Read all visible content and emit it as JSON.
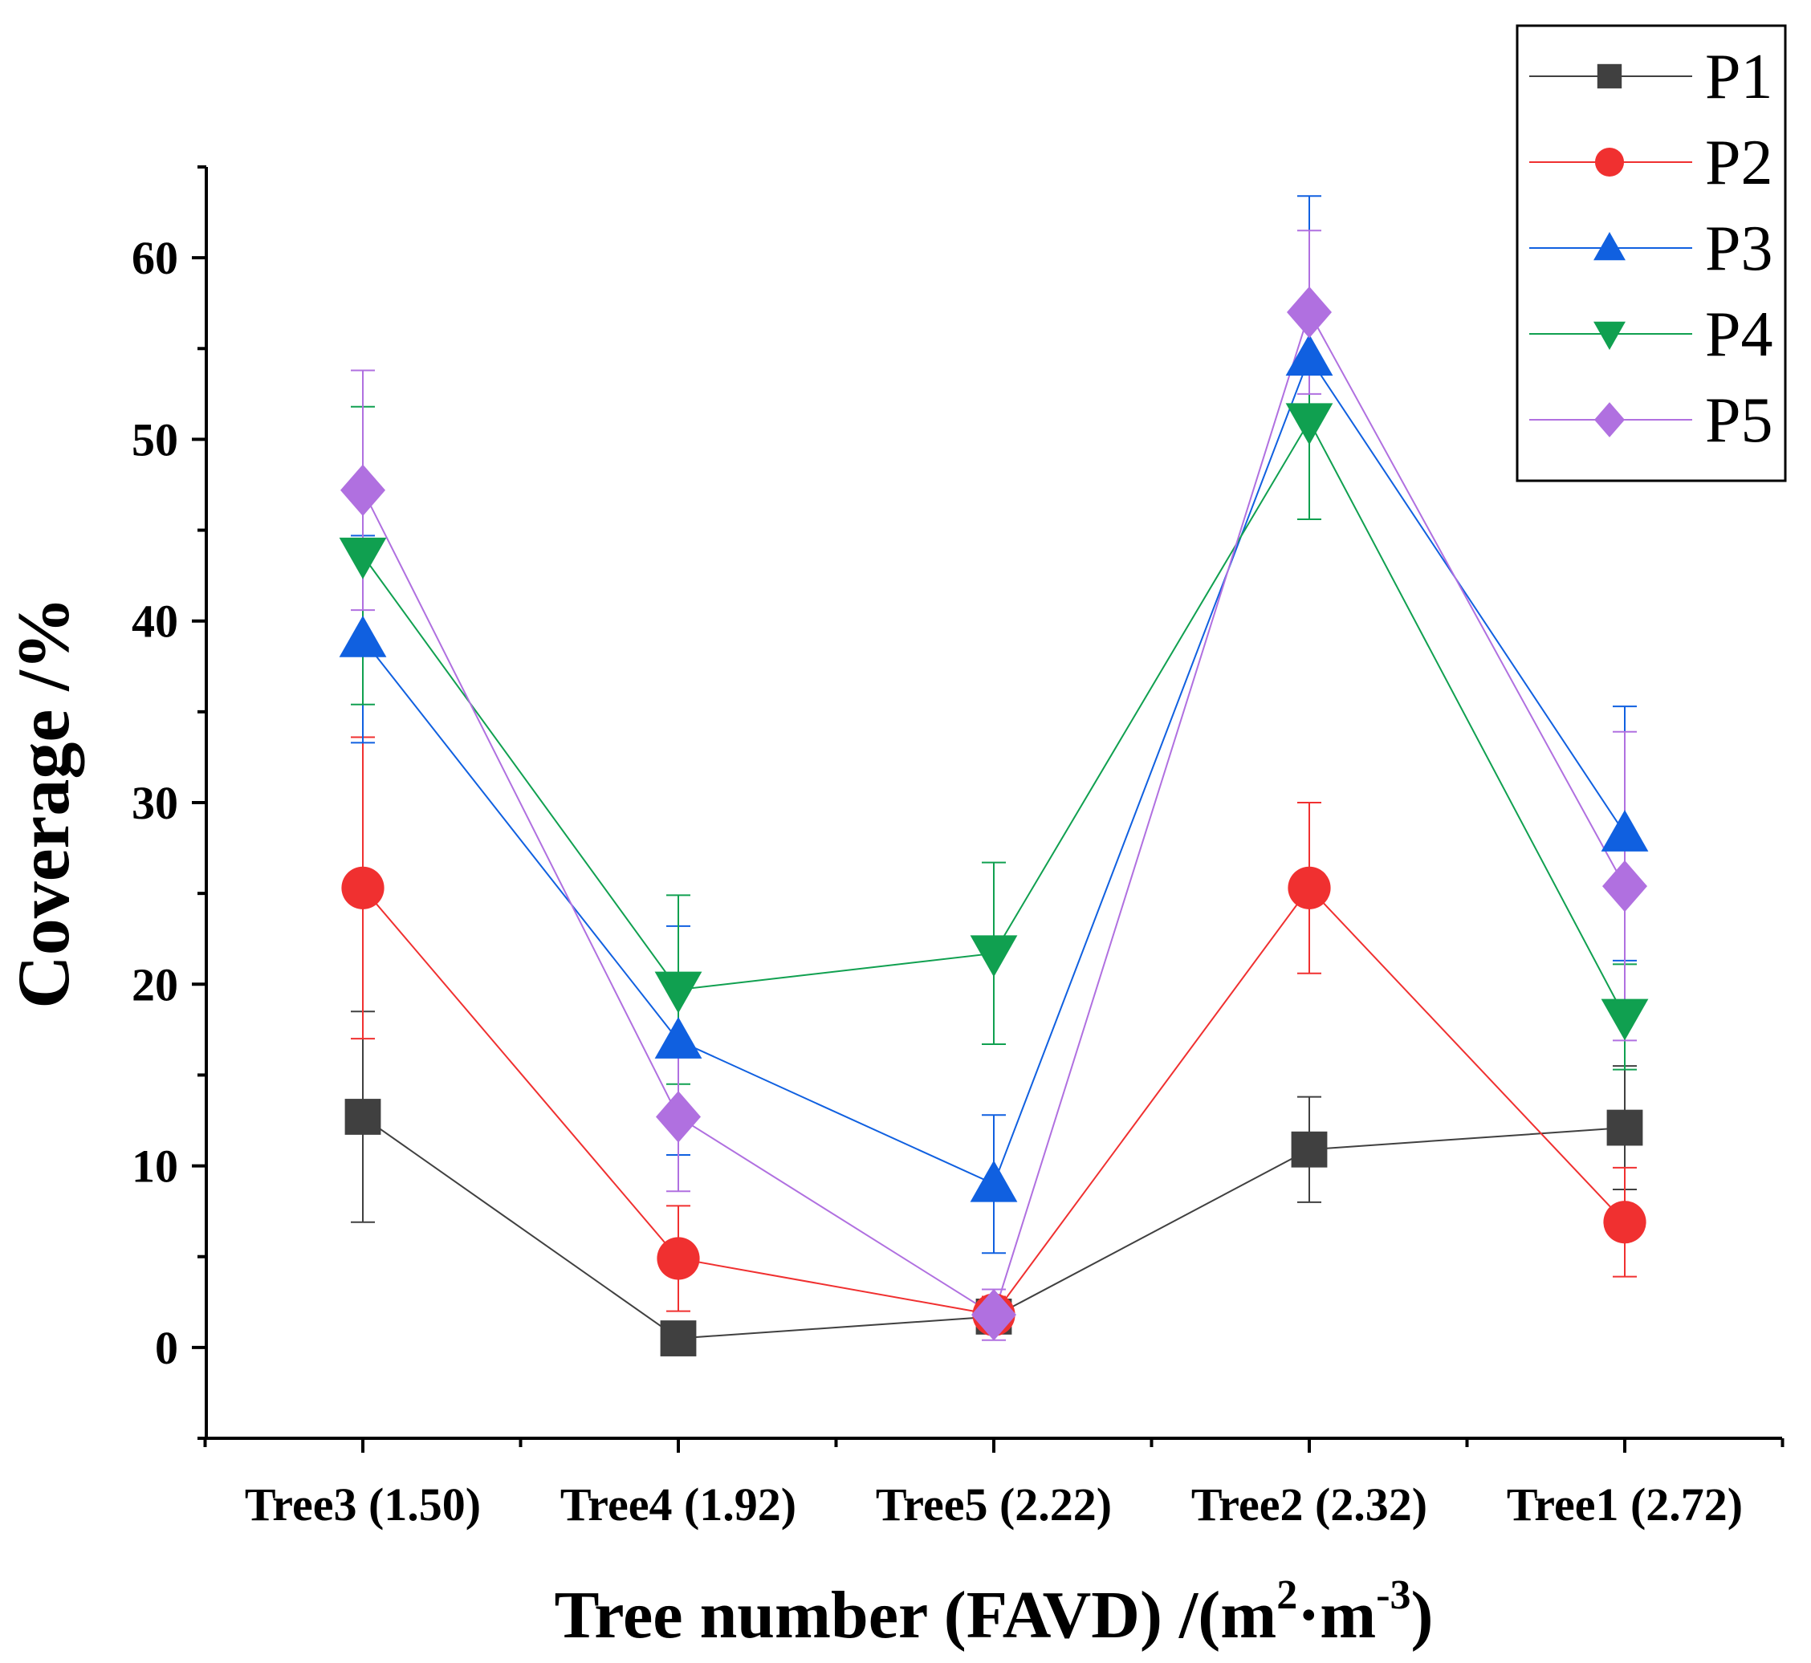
{
  "chart_data": {
    "type": "line",
    "title": "",
    "xlabel": "Tree number (FAVD) /(m",
    "xlabel_sup1": "2",
    "xlabel_mid": "·m",
    "xlabel_sup2": "-3",
    "xlabel_end": ")",
    "ylabel": "Coverage /%",
    "ylim": [
      -5,
      65
    ],
    "yticks": [
      0,
      10,
      20,
      30,
      40,
      50,
      60
    ],
    "ytick_labels": [
      "0",
      "10",
      "20",
      "30",
      "40",
      "50",
      "60"
    ],
    "categories": [
      "Tree3 (1.50)",
      "Tree4 (1.92)",
      "Tree5 (2.22)",
      "Tree2 (2.32)",
      "Tree1 (2.72)"
    ],
    "legend_position": "top-right",
    "grid": false,
    "series": [
      {
        "name": "P1",
        "color": "#404040",
        "marker": "square",
        "values": [
          12.7,
          0.5,
          1.7,
          10.9,
          12.1
        ],
        "errors": [
          5.8,
          0.3,
          0.4,
          2.9,
          3.4
        ]
      },
      {
        "name": "P2",
        "color": "#f03030",
        "marker": "circle",
        "values": [
          25.3,
          4.9,
          1.8,
          25.3,
          6.9
        ],
        "errors": [
          8.3,
          2.9,
          1.0,
          4.7,
          3.0
        ]
      },
      {
        "name": "P3",
        "color": "#1060e0",
        "marker": "triangle-up",
        "values": [
          39.0,
          16.9,
          9.0,
          54.5,
          28.3
        ],
        "errors": [
          5.7,
          6.3,
          3.8,
          8.9,
          7.0
        ]
      },
      {
        "name": "P4",
        "color": "#10a050",
        "marker": "triangle-down",
        "values": [
          43.6,
          19.7,
          21.7,
          51.0,
          18.2
        ],
        "errors": [
          8.2,
          5.2,
          5.0,
          5.4,
          2.9
        ]
      },
      {
        "name": "P5",
        "color": "#b070e0",
        "marker": "diamond",
        "values": [
          47.2,
          12.7,
          1.8,
          57.0,
          25.4
        ],
        "errors": [
          6.6,
          4.1,
          1.4,
          4.5,
          8.5
        ]
      }
    ]
  }
}
